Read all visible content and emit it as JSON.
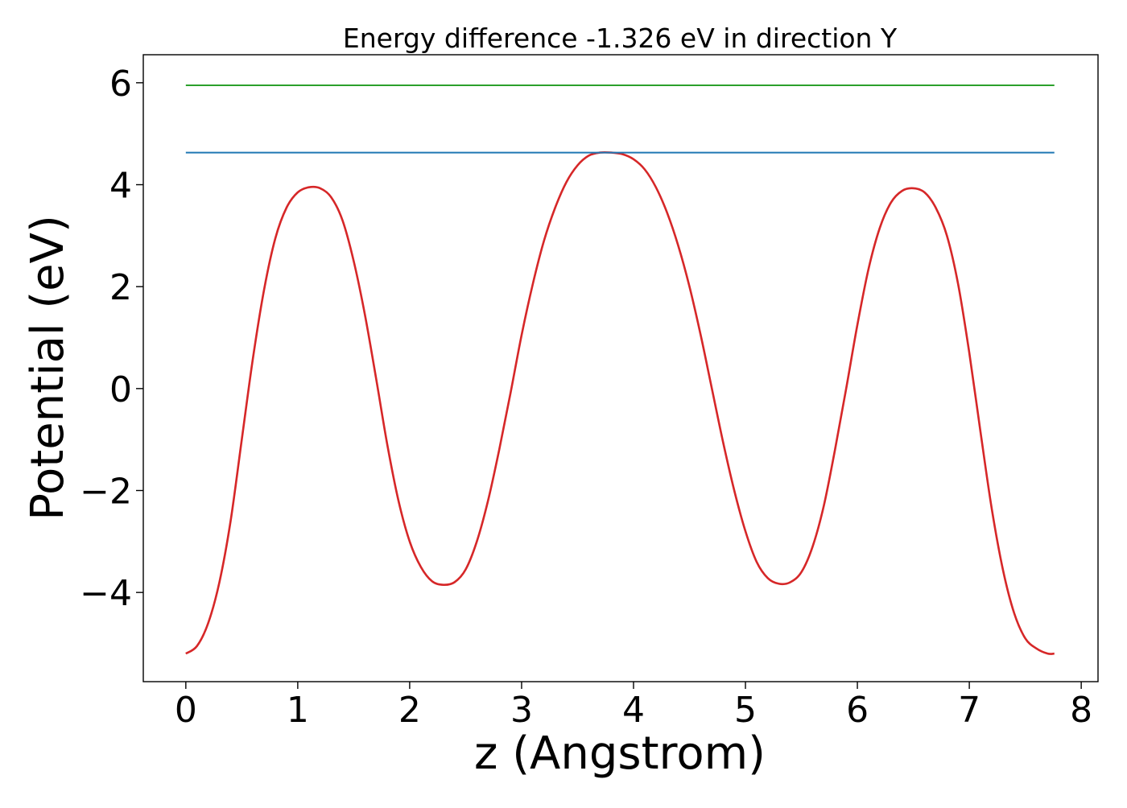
{
  "chart_data": {
    "type": "line",
    "title": "Energy difference -1.326 eV in direction Y",
    "xlabel": "z (Angstrom)",
    "ylabel": "Potential (eV)",
    "xlim": [
      -0.38,
      8.15
    ],
    "ylim": [
      -5.75,
      6.55
    ],
    "x_ticks": [
      0,
      1,
      2,
      3,
      4,
      5,
      6,
      7,
      8
    ],
    "x_tick_labels": [
      "0",
      "1",
      "2",
      "3",
      "4",
      "5",
      "6",
      "7",
      "8"
    ],
    "y_ticks": [
      -4,
      -2,
      0,
      2,
      4,
      6
    ],
    "y_tick_labels": [
      "−4",
      "−2",
      "0",
      "2",
      "4",
      "6"
    ],
    "grid": false,
    "legend": "none",
    "series": [
      {
        "color": "#d62728",
        "style": "curve",
        "x": [
          0,
          0.1,
          0.2,
          0.3,
          0.4,
          0.5,
          0.6,
          0.7,
          0.8,
          0.9,
          1.0,
          1.1,
          1.2,
          1.3,
          1.4,
          1.5,
          1.6,
          1.7,
          1.8,
          1.9,
          2.0,
          2.1,
          2.2,
          2.3,
          2.4,
          2.5,
          2.6,
          2.7,
          2.8,
          2.9,
          3.0,
          3.1,
          3.2,
          3.3,
          3.4,
          3.5,
          3.6,
          3.7,
          3.8,
          3.9,
          4.0,
          4.1,
          4.2,
          4.3,
          4.4,
          4.5,
          4.6,
          4.7,
          4.8,
          4.9,
          5.0,
          5.1,
          5.2,
          5.3,
          5.4,
          5.5,
          5.6,
          5.7,
          5.8,
          5.9,
          6.0,
          6.1,
          6.2,
          6.3,
          6.4,
          6.5,
          6.6,
          6.7,
          6.8,
          6.9,
          7.0,
          7.1,
          7.2,
          7.3,
          7.4,
          7.5,
          7.6,
          7.7,
          7.76
        ],
        "y": [
          -5.2,
          -5.05,
          -4.6,
          -3.8,
          -2.6,
          -1.0,
          0.6,
          1.95,
          2.95,
          3.55,
          3.85,
          3.95,
          3.93,
          3.75,
          3.3,
          2.5,
          1.45,
          0.2,
          -1.1,
          -2.2,
          -3.0,
          -3.5,
          -3.78,
          -3.85,
          -3.8,
          -3.55,
          -3.0,
          -2.2,
          -1.2,
          -0.1,
          1.05,
          2.05,
          2.9,
          3.55,
          4.05,
          4.38,
          4.57,
          4.63,
          4.63,
          4.6,
          4.5,
          4.3,
          3.95,
          3.45,
          2.8,
          2.0,
          1.05,
          0.0,
          -1.05,
          -2.0,
          -2.8,
          -3.4,
          -3.72,
          -3.83,
          -3.8,
          -3.6,
          -3.1,
          -2.3,
          -1.2,
          0.0,
          1.25,
          2.35,
          3.15,
          3.65,
          3.88,
          3.93,
          3.85,
          3.55,
          3.0,
          2.05,
          0.7,
          -0.85,
          -2.35,
          -3.55,
          -4.4,
          -4.9,
          -5.1,
          -5.2,
          -5.2
        ]
      },
      {
        "color": "#1f77b4",
        "style": "line",
        "x": [
          0,
          7.76
        ],
        "y": [
          4.63,
          4.63
        ]
      },
      {
        "color": "#2ca02c",
        "style": "line",
        "x": [
          0,
          7.76
        ],
        "y": [
          5.95,
          5.95
        ]
      }
    ]
  }
}
